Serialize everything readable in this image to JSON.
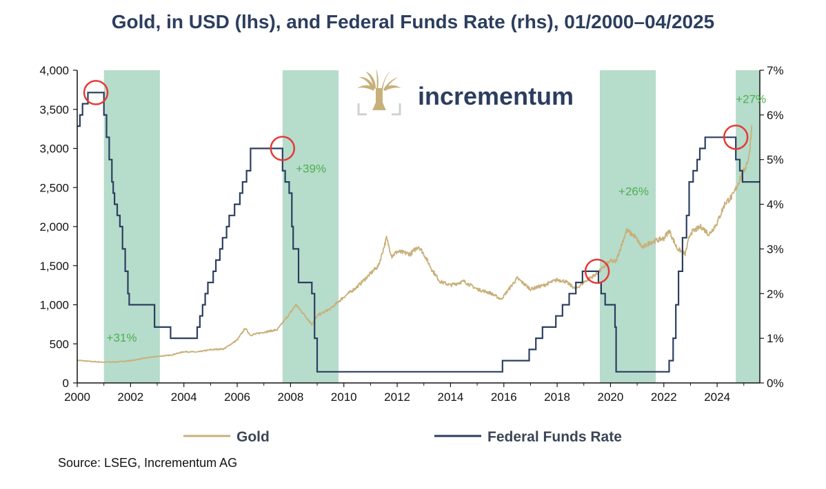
{
  "title": "Gold, in USD (lhs), and Federal Funds Rate (rhs), 01/2000–04/2025",
  "source": "Source: LSEG, Incrementum AG",
  "logo_text": "incrementum",
  "colors": {
    "gold": "#c8b07a",
    "fed": "#2c3e5f",
    "shade": "#b6dccb",
    "circle": "#e53935",
    "annotation": "#4caf50"
  },
  "chart_data": {
    "type": "line",
    "title": "Gold, in USD (lhs), and Federal Funds Rate (rhs), 01/2000–04/2025",
    "x_range": [
      2000,
      2025.6
    ],
    "x_ticks": [
      2000,
      2002,
      2004,
      2006,
      2008,
      2010,
      2012,
      2014,
      2016,
      2018,
      2020,
      2022,
      2024
    ],
    "y_left": {
      "range": [
        0,
        4000
      ],
      "ticks": [
        0,
        500,
        1000,
        1500,
        2000,
        2500,
        3000,
        3500,
        4000
      ],
      "tick_labels": [
        "0",
        "500",
        "1,000",
        "1,500",
        "2,000",
        "2,500",
        "3,000",
        "3,500",
        "4,000"
      ]
    },
    "y_right": {
      "range": [
        0,
        7
      ],
      "ticks": [
        0,
        1,
        2,
        3,
        4,
        5,
        6,
        7
      ],
      "tick_labels": [
        "0%",
        "1%",
        "2%",
        "3%",
        "4%",
        "5%",
        "6%",
        "7%"
      ]
    },
    "shaded_periods": [
      [
        2001.0,
        2003.1
      ],
      [
        2007.7,
        2009.8
      ],
      [
        2019.6,
        2021.7
      ],
      [
        2024.7,
        2025.6
      ]
    ],
    "annotations": [
      {
        "text": "+31%",
        "x": 2001.1,
        "y_left": 530
      },
      {
        "text": "+39%",
        "x": 2008.2,
        "y_left": 2690
      },
      {
        "text": "+26%",
        "x": 2020.3,
        "y_left": 2400
      },
      {
        "text": "+27%",
        "x": 2024.7,
        "y_left": 3580
      }
    ],
    "circle_markers": [
      {
        "x": 2000.7,
        "y_right": 6.5
      },
      {
        "x": 2007.7,
        "y_right": 5.25
      },
      {
        "x": 2019.5,
        "y_right": 2.5
      },
      {
        "x": 2024.7,
        "y_right": 5.5
      }
    ],
    "series": [
      {
        "name": "Gold",
        "axis": "left",
        "x": [
          2000.0,
          2000.5,
          2001.0,
          2001.5,
          2002.0,
          2002.5,
          2003.0,
          2003.5,
          2004.0,
          2004.5,
          2005.0,
          2005.5,
          2006.0,
          2006.3,
          2006.5,
          2007.0,
          2007.5,
          2008.0,
          2008.2,
          2008.5,
          2008.8,
          2009.0,
          2009.5,
          2010.0,
          2010.5,
          2011.0,
          2011.3,
          2011.6,
          2011.8,
          2012.0,
          2012.5,
          2012.8,
          2013.0,
          2013.3,
          2013.6,
          2014.0,
          2014.5,
          2015.0,
          2015.5,
          2015.9,
          2016.5,
          2017.0,
          2017.5,
          2018.0,
          2018.3,
          2018.7,
          2019.0,
          2019.5,
          2019.8,
          2020.0,
          2020.2,
          2020.6,
          2020.9,
          2021.2,
          2021.5,
          2022.0,
          2022.2,
          2022.5,
          2022.8,
          2023.0,
          2023.4,
          2023.7,
          2024.0,
          2024.3,
          2024.6,
          2024.9,
          2025.0,
          2025.2,
          2025.3
        ],
        "values": [
          290,
          275,
          265,
          270,
          285,
          315,
          340,
          355,
          400,
          395,
          425,
          435,
          550,
          700,
          610,
          650,
          680,
          900,
          1000,
          880,
          750,
          860,
          950,
          1100,
          1230,
          1400,
          1500,
          1850,
          1620,
          1680,
          1650,
          1750,
          1650,
          1450,
          1300,
          1250,
          1300,
          1200,
          1150,
          1070,
          1340,
          1200,
          1250,
          1320,
          1300,
          1200,
          1290,
          1400,
          1500,
          1560,
          1550,
          1950,
          1880,
          1730,
          1800,
          1850,
          1950,
          1720,
          1650,
          1920,
          2000,
          1900,
          2050,
          2300,
          2400,
          2650,
          2700,
          2900,
          3300
        ]
      },
      {
        "name": "Federal Funds Rate",
        "axis": "right",
        "x": [
          2000.0,
          2000.1,
          2000.2,
          2000.4,
          2000.9,
          2001.0,
          2001.1,
          2001.2,
          2001.3,
          2001.35,
          2001.4,
          2001.5,
          2001.6,
          2001.7,
          2001.8,
          2001.9,
          2001.95,
          2002.9,
          2003.5,
          2004.5,
          2004.6,
          2004.7,
          2004.8,
          2004.9,
          2005.1,
          2005.2,
          2005.35,
          2005.45,
          2005.6,
          2005.7,
          2005.9,
          2006.1,
          2006.2,
          2006.35,
          2006.5,
          2007.7,
          2007.8,
          2007.95,
          2008.05,
          2008.1,
          2008.3,
          2008.8,
          2008.9,
          2009.0,
          2015.95,
          2016.95,
          2017.2,
          2017.45,
          2017.95,
          2018.2,
          2018.45,
          2018.7,
          2018.95,
          2019.55,
          2019.65,
          2019.8,
          2020.17,
          2020.21,
          2022.2,
          2022.35,
          2022.45,
          2022.55,
          2022.7,
          2022.85,
          2022.95,
          2023.1,
          2023.25,
          2023.35,
          2023.55,
          2024.7,
          2024.85,
          2024.95,
          2025.6
        ],
        "values": [
          5.75,
          6.0,
          6.25,
          6.5,
          6.5,
          6.0,
          5.5,
          5.0,
          4.5,
          4.25,
          4.0,
          3.75,
          3.5,
          3.0,
          2.5,
          2.0,
          1.75,
          1.25,
          1.0,
          1.25,
          1.5,
          1.75,
          2.0,
          2.25,
          2.5,
          2.75,
          3.0,
          3.25,
          3.5,
          3.75,
          4.0,
          4.25,
          4.5,
          4.75,
          5.25,
          4.75,
          4.5,
          4.25,
          3.5,
          3.0,
          2.25,
          2.0,
          1.0,
          0.25,
          0.5,
          0.75,
          1.0,
          1.25,
          1.5,
          1.75,
          2.0,
          2.25,
          2.5,
          2.25,
          2.0,
          1.75,
          1.25,
          0.25,
          0.5,
          1.0,
          1.75,
          2.5,
          3.25,
          3.75,
          4.5,
          4.75,
          5.0,
          5.25,
          5.5,
          5.0,
          4.75,
          4.5,
          4.5
        ]
      }
    ]
  }
}
